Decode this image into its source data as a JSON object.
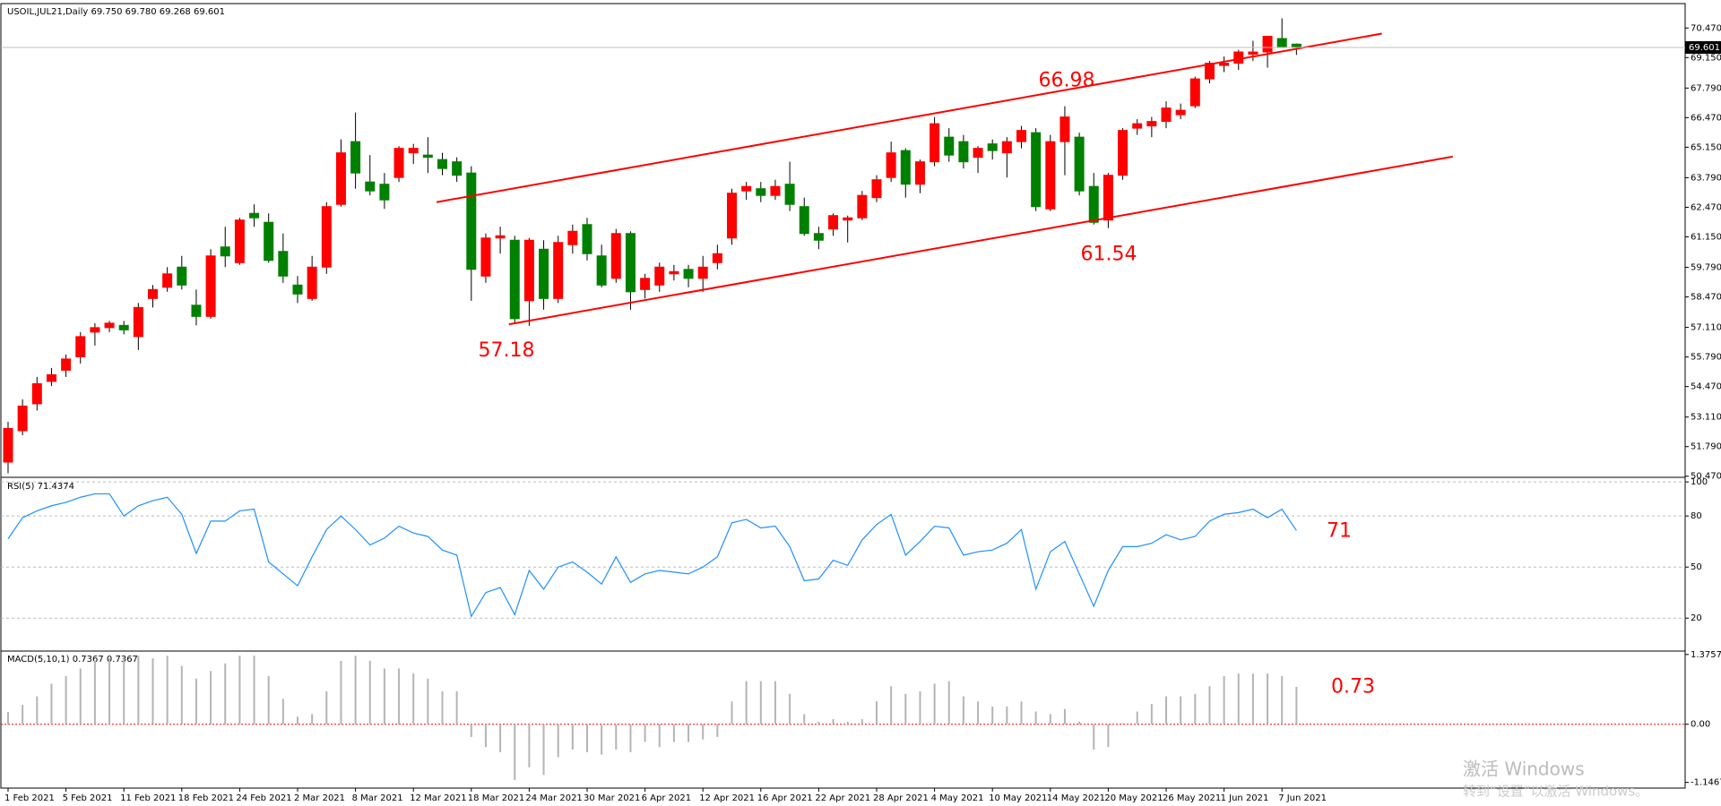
{
  "chart_data": {
    "type": "candlestick",
    "title": "USOIL,JUL21,Daily  69.750 69.780 69.268 69.601",
    "up_color": "#ff0000",
    "down_color": "#008000",
    "categories": [
      "1 Feb 2021",
      null,
      null,
      null,
      "5 Feb 2021",
      null,
      null,
      null,
      "11 Feb 2021",
      null,
      null,
      null,
      "18 Feb 2021",
      null,
      null,
      null,
      "24 Feb 2021",
      null,
      null,
      null,
      "2 Mar 2021",
      null,
      null,
      null,
      "8 Mar 2021",
      null,
      null,
      null,
      "12 Mar 2021",
      null,
      null,
      null,
      "18 Mar 2021",
      null,
      null,
      null,
      "24 Mar 2021",
      null,
      null,
      null,
      "30 Mar 2021",
      null,
      null,
      null,
      "6 Apr 2021",
      null,
      null,
      null,
      "12 Apr 2021",
      null,
      null,
      null,
      "16 Apr 2021",
      null,
      null,
      null,
      "22 Apr 2021",
      null,
      null,
      null,
      "28 Apr 2021",
      null,
      null,
      null,
      "4 May 2021",
      null,
      null,
      null,
      "10 May 2021",
      null,
      null,
      null,
      "14 May 2021",
      null,
      null,
      null,
      "20 May 2021",
      null,
      null,
      null,
      "26 May 2021",
      null,
      null,
      null,
      "1 Jun 2021",
      null,
      null,
      null,
      "7 Jun 2021",
      null
    ],
    "ohlc": [
      [
        51.1,
        52.9,
        50.6,
        52.6
      ],
      [
        52.5,
        53.9,
        52.3,
        53.6
      ],
      [
        53.7,
        54.9,
        53.4,
        54.6
      ],
      [
        54.7,
        55.3,
        54.5,
        55.0
      ],
      [
        55.2,
        55.9,
        54.9,
        55.7
      ],
      [
        55.8,
        56.9,
        55.5,
        56.7
      ],
      [
        56.9,
        57.3,
        56.3,
        57.1
      ],
      [
        57.1,
        57.4,
        56.9,
        57.3
      ],
      [
        57.2,
        57.4,
        56.8,
        57.0
      ],
      [
        56.7,
        58.2,
        56.1,
        58.0
      ],
      [
        58.4,
        59.0,
        58.0,
        58.8
      ],
      [
        58.9,
        59.8,
        58.7,
        59.5
      ],
      [
        59.8,
        60.3,
        58.8,
        59.0
      ],
      [
        58.1,
        58.8,
        57.2,
        57.6
      ],
      [
        57.6,
        60.6,
        57.5,
        60.3
      ],
      [
        60.7,
        61.6,
        59.8,
        60.3
      ],
      [
        60.0,
        62.0,
        59.9,
        61.9
      ],
      [
        62.2,
        62.6,
        61.6,
        62.0
      ],
      [
        61.8,
        62.2,
        60.0,
        60.1
      ],
      [
        60.5,
        61.3,
        59.1,
        59.4
      ],
      [
        59.0,
        59.4,
        58.2,
        58.6
      ],
      [
        58.4,
        60.3,
        58.3,
        59.8
      ],
      [
        59.8,
        62.7,
        59.5,
        62.5
      ],
      [
        62.6,
        65.5,
        62.5,
        64.9
      ],
      [
        65.4,
        66.7,
        63.3,
        64.0
      ],
      [
        63.6,
        64.8,
        63.0,
        63.2
      ],
      [
        63.5,
        64.0,
        62.4,
        62.8
      ],
      [
        63.8,
        65.2,
        63.6,
        65.1
      ],
      [
        64.9,
        65.3,
        64.4,
        65.1
      ],
      [
        64.8,
        65.6,
        64.0,
        64.7
      ],
      [
        64.6,
        64.9,
        63.9,
        64.2
      ],
      [
        64.5,
        64.7,
        63.6,
        63.9
      ],
      [
        64.0,
        64.3,
        58.3,
        59.7
      ],
      [
        59.4,
        61.3,
        59.1,
        61.1
      ],
      [
        61.1,
        61.6,
        60.4,
        61.2
      ],
      [
        61.0,
        61.2,
        57.3,
        57.5
      ],
      [
        58.3,
        61.1,
        57.18,
        61.0
      ],
      [
        60.6,
        61.0,
        57.9,
        58.4
      ],
      [
        58.4,
        61.2,
        58.2,
        60.9
      ],
      [
        60.8,
        61.7,
        60.4,
        61.4
      ],
      [
        61.7,
        62.0,
        60.1,
        60.4
      ],
      [
        60.3,
        60.8,
        58.9,
        59.0
      ],
      [
        59.3,
        61.5,
        59.1,
        61.3
      ],
      [
        61.3,
        61.4,
        57.9,
        58.7
      ],
      [
        58.8,
        59.5,
        58.4,
        59.3
      ],
      [
        59.0,
        60.0,
        58.7,
        59.8
      ],
      [
        59.5,
        59.9,
        59.2,
        59.6
      ],
      [
        59.7,
        59.9,
        58.9,
        59.3
      ],
      [
        59.3,
        60.3,
        58.7,
        59.8
      ],
      [
        60.0,
        60.8,
        59.7,
        60.4
      ],
      [
        61.1,
        63.3,
        60.8,
        63.1
      ],
      [
        63.2,
        63.6,
        62.8,
        63.4
      ],
      [
        63.3,
        63.6,
        62.7,
        63.0
      ],
      [
        63.0,
        63.7,
        62.8,
        63.4
      ],
      [
        63.5,
        64.5,
        62.3,
        62.6
      ],
      [
        62.5,
        62.9,
        61.2,
        61.3
      ],
      [
        61.3,
        61.6,
        60.6,
        61.0
      ],
      [
        61.5,
        62.2,
        61.2,
        62.1
      ],
      [
        61.9,
        62.1,
        60.9,
        62.0
      ],
      [
        62.0,
        63.2,
        61.9,
        63.0
      ],
      [
        62.9,
        63.9,
        62.7,
        63.7
      ],
      [
        63.8,
        65.4,
        63.6,
        64.9
      ],
      [
        65.0,
        65.1,
        62.9,
        63.5
      ],
      [
        63.5,
        64.6,
        63.1,
        64.5
      ],
      [
        64.5,
        66.5,
        64.3,
        66.2
      ],
      [
        65.6,
        66.0,
        64.5,
        64.8
      ],
      [
        65.4,
        65.7,
        64.2,
        64.5
      ],
      [
        64.7,
        65.2,
        64.0,
        65.1
      ],
      [
        65.3,
        65.5,
        64.6,
        65.0
      ],
      [
        64.9,
        65.6,
        63.8,
        65.4
      ],
      [
        65.4,
        66.1,
        65.1,
        65.9
      ],
      [
        65.8,
        66.0,
        62.3,
        62.5
      ],
      [
        62.4,
        65.7,
        62.3,
        65.4
      ],
      [
        65.4,
        66.98,
        63.9,
        66.5
      ],
      [
        65.6,
        65.8,
        63.0,
        63.2
      ],
      [
        63.4,
        64.0,
        61.7,
        61.8
      ],
      [
        61.9,
        64.0,
        61.54,
        63.9
      ],
      [
        63.9,
        66.0,
        63.7,
        65.9
      ],
      [
        66.0,
        66.4,
        65.7,
        66.2
      ],
      [
        66.1,
        66.5,
        65.6,
        66.3
      ],
      [
        66.3,
        67.2,
        66.0,
        66.9
      ],
      [
        66.6,
        67.1,
        66.4,
        66.8
      ],
      [
        67.0,
        68.3,
        66.9,
        68.2
      ],
      [
        68.2,
        69.0,
        68.0,
        68.9
      ],
      [
        68.8,
        69.2,
        68.5,
        68.9
      ],
      [
        68.9,
        69.5,
        68.6,
        69.4
      ],
      [
        69.3,
        69.9,
        69.0,
        69.4
      ],
      [
        69.4,
        70.1,
        68.7,
        70.1
      ],
      [
        70.0,
        70.9,
        69.6,
        69.6
      ],
      [
        69.75,
        69.78,
        69.268,
        69.601
      ]
    ],
    "ylim": [
      50.42,
      71.56
    ],
    "yticks": [
      {
        "value": 50.47,
        "label": "50.470"
      },
      {
        "value": 51.79,
        "label": "51.790"
      },
      {
        "value": 53.11,
        "label": "53.110"
      },
      {
        "value": 54.47,
        "label": "54.470"
      },
      {
        "value": 55.79,
        "label": "55.790"
      },
      {
        "value": 57.11,
        "label": "57.110"
      },
      {
        "value": 58.47,
        "label": "58.470"
      },
      {
        "value": 59.79,
        "label": "59.790"
      },
      {
        "value": 61.15,
        "label": "61.150"
      },
      {
        "value": 62.47,
        "label": "62.470"
      },
      {
        "value": 63.79,
        "label": "63.790"
      },
      {
        "value": 65.15,
        "label": "65.150"
      },
      {
        "value": 66.47,
        "label": "66.470"
      },
      {
        "value": 67.79,
        "label": "67.790"
      },
      {
        "value": 69.15,
        "label": "69.150"
      },
      {
        "value": 70.47,
        "label": "70.470"
      }
    ],
    "current_price": 69.601,
    "trendlines": [
      {
        "color": "#ff0000",
        "x": [
          29.6,
          94.9
        ],
        "y": [
          62.7,
          70.22
        ]
      },
      {
        "color": "#ff0000",
        "x": [
          34.6,
          99.8
        ],
        "y": [
          57.25,
          64.73
        ]
      }
    ],
    "annotations": [
      66.98,
      57.18,
      61.54
    ],
    "rsi": {
      "title": "RSI(5) 71.4374",
      "color": "#1e90ff",
      "ylim": [
        0.67,
        102.7
      ],
      "yticks": [
        20,
        50,
        80,
        100
      ],
      "annotation": 71,
      "values": [
        66.6,
        79,
        83,
        86,
        88,
        91,
        93,
        93,
        80,
        86,
        89,
        91,
        81,
        58,
        77,
        77,
        83,
        84,
        53,
        46,
        39,
        56,
        72,
        80,
        72,
        63,
        67,
        74,
        70,
        68,
        60,
        57,
        21,
        35,
        38,
        22,
        48,
        37,
        50,
        53,
        47,
        40,
        56,
        41,
        46,
        48,
        47,
        46,
        50,
        56,
        76,
        78,
        73,
        74,
        62,
        42,
        43,
        54,
        51,
        66,
        75,
        81,
        57,
        65,
        74,
        73,
        57,
        59,
        60,
        64,
        72,
        37,
        59,
        65,
        46,
        27,
        48,
        62,
        62,
        64,
        69,
        66,
        68,
        77,
        81,
        82,
        84,
        79,
        84,
        71.44
      ]
    },
    "macd": {
      "title": "MACD(5,10,1) 0.7367 0.7367",
      "color": "#b4b4b4",
      "ylim": [
        -1.259,
        1.443
      ],
      "yticks": [
        1.3757,
        {
          "value": 0,
          "label": "0.00"
        },
        -1.1467
      ],
      "annotation": 0.73,
      "values": [
        0.24,
        0.38,
        0.55,
        0.8,
        0.95,
        1.1,
        1.25,
        1.3,
        1.3,
        1.35,
        1.3,
        1.35,
        1.15,
        0.9,
        1.05,
        1.2,
        1.35,
        1.35,
        0.95,
        0.5,
        0.15,
        0.2,
        0.65,
        1.25,
        1.35,
        1.25,
        1.1,
        1.1,
        1.0,
        0.9,
        0.65,
        0.65,
        -0.25,
        -0.45,
        -0.55,
        -1.1,
        -0.85,
        -1.0,
        -0.65,
        -0.5,
        -0.55,
        -0.6,
        -0.5,
        -0.55,
        -0.35,
        -0.45,
        -0.35,
        -0.35,
        -0.3,
        -0.25,
        0.45,
        0.85,
        0.85,
        0.85,
        0.6,
        0.2,
        0.05,
        0.1,
        0.05,
        0.1,
        0.45,
        0.75,
        0.6,
        0.65,
        0.8,
        0.85,
        0.55,
        0.45,
        0.35,
        0.35,
        0.45,
        0.25,
        0.2,
        0.3,
        0.05,
        -0.5,
        -0.45,
        0.02,
        0.25,
        0.4,
        0.55,
        0.55,
        0.6,
        0.75,
        0.95,
        1.0,
        1.0,
        1.0,
        0.95,
        0.7367
      ]
    }
  },
  "watermark": {
    "line1": "激活 Windows",
    "line2": "转到“设置”以激活 Windows。"
  }
}
